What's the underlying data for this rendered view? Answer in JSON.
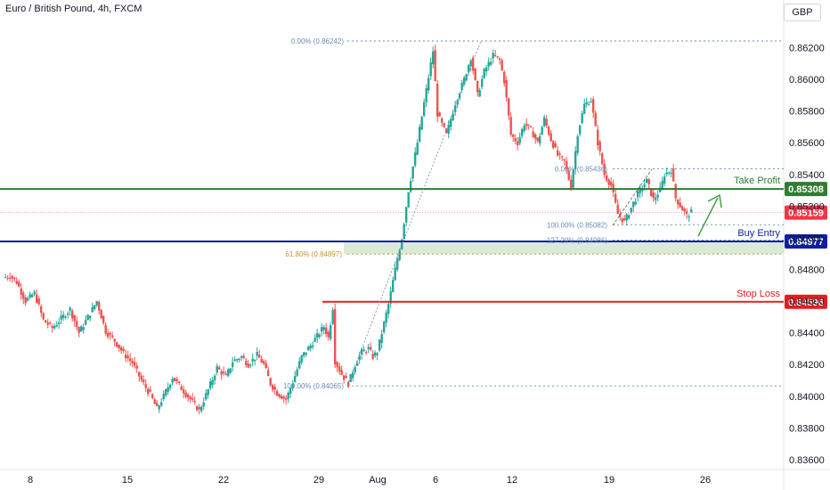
{
  "header": {
    "title": "Euro / British Pound, 4h, FXCM",
    "currency": "GBP"
  },
  "colors": {
    "up": "#26a69a",
    "down": "#ef5350",
    "take_profit": "#2e7d32",
    "buy_entry": "#0d1fa3",
    "stop_loss": "#e02020",
    "fib": "#6b8bb5",
    "fib_618": "#c8912e",
    "zone": "#cfe3c8",
    "arrow": "#43a047",
    "current": "#f23645"
  },
  "chart_data": {
    "type": "candlestick",
    "title": "",
    "xlabel": "",
    "ylabel": "",
    "ylim": [
      0.8355,
      0.8627
    ],
    "y_ticks": [
      "0.86200",
      "0.86000",
      "0.85800",
      "0.85600",
      "0.85400",
      "0.85200",
      "0.85000",
      "0.84800",
      "0.84600",
      "0.84400",
      "0.84200",
      "0.84000",
      "0.83800",
      "0.83600"
    ],
    "x_ticks": [
      "8",
      "15",
      "22",
      "29",
      "Aug",
      "6",
      "12",
      "19",
      "26"
    ],
    "levels": [
      {
        "id": "take-profit",
        "label": "Take Profit",
        "value": 0.85308,
        "price_label": "0.85308"
      },
      {
        "id": "buy-entry",
        "label": "Buy Entry",
        "value": 0.84977,
        "price_label": "0.84977"
      },
      {
        "id": "stop-loss",
        "label": "Stop Loss",
        "value": 0.84596,
        "price_label": "0.84596"
      }
    ],
    "current_price": {
      "value": 0.85159,
      "label": "0.85159"
    },
    "fib_labels": [
      {
        "text": "0.00% (0.86242)",
        "value": 0.86242
      },
      {
        "text": "100.00% (0.84065)",
        "value": 0.84065
      },
      {
        "text": "61.80% (0.84897)",
        "value": 0.84897
      },
      {
        "text": "0.00% (0.85436)",
        "value": 0.85436
      },
      {
        "text": "100.00% (0.85082)",
        "value": 0.85082
      },
      {
        "text": "127.20% (0.84986)",
        "value": 0.84986
      }
    ],
    "price_path": [
      [
        0,
        0.8475
      ],
      [
        3,
        0.8476
      ],
      [
        6,
        0.8472
      ],
      [
        10,
        0.846
      ],
      [
        14,
        0.8465
      ],
      [
        18,
        0.8448
      ],
      [
        22,
        0.8443
      ],
      [
        26,
        0.8449
      ],
      [
        30,
        0.8455
      ],
      [
        34,
        0.844
      ],
      [
        38,
        0.845
      ],
      [
        42,
        0.846
      ],
      [
        46,
        0.8441
      ],
      [
        50,
        0.8435
      ],
      [
        54,
        0.8427
      ],
      [
        58,
        0.8421
      ],
      [
        62,
        0.841
      ],
      [
        66,
        0.8401
      ],
      [
        69,
        0.8392
      ],
      [
        72,
        0.84
      ],
      [
        76,
        0.8412
      ],
      [
        80,
        0.8405
      ],
      [
        84,
        0.8398
      ],
      [
        88,
        0.8391
      ],
      [
        92,
        0.8404
      ],
      [
        96,
        0.8418
      ],
      [
        100,
        0.8412
      ],
      [
        103,
        0.8422
      ],
      [
        107,
        0.8425
      ],
      [
        110,
        0.842
      ],
      [
        114,
        0.8426
      ],
      [
        117,
        0.842
      ],
      [
        120,
        0.8408
      ],
      [
        123,
        0.8402
      ],
      [
        127,
        0.8398
      ],
      [
        130,
        0.8409
      ],
      [
        134,
        0.8425
      ],
      [
        138,
        0.8432
      ],
      [
        141,
        0.8438
      ],
      [
        144,
        0.8444
      ],
      [
        146,
        0.8437
      ],
      [
        148,
        0.8456
      ],
      [
        149,
        0.8422
      ],
      [
        152,
        0.8414
      ],
      [
        155,
        0.8408
      ],
      [
        158,
        0.842
      ],
      [
        161,
        0.8428
      ],
      [
        164,
        0.843
      ],
      [
        166,
        0.8425
      ],
      [
        168,
        0.8428
      ],
      [
        170,
        0.844
      ],
      [
        173,
        0.8458
      ],
      [
        176,
        0.848
      ],
      [
        179,
        0.85
      ],
      [
        182,
        0.853
      ],
      [
        186,
        0.856
      ],
      [
        189,
        0.8585
      ],
      [
        193,
        0.8618
      ],
      [
        195,
        0.8578
      ],
      [
        199,
        0.8565
      ],
      [
        203,
        0.8585
      ],
      [
        207,
        0.86
      ],
      [
        210,
        0.8614
      ],
      [
        213,
        0.859
      ],
      [
        216,
        0.8605
      ],
      [
        220,
        0.8615
      ],
      [
        223,
        0.8612
      ],
      [
        225,
        0.8599
      ],
      [
        228,
        0.8565
      ],
      [
        231,
        0.856
      ],
      [
        234,
        0.8572
      ],
      [
        237,
        0.8568
      ],
      [
        240,
        0.856
      ],
      [
        243,
        0.8575
      ],
      [
        246,
        0.8562
      ],
      [
        249,
        0.8552
      ],
      [
        252,
        0.8548
      ],
      [
        255,
        0.8532
      ],
      [
        258,
        0.8566
      ],
      [
        261,
        0.8584
      ],
      [
        264,
        0.8587
      ],
      [
        267,
        0.856
      ],
      [
        270,
        0.854
      ],
      [
        273,
        0.8533
      ],
      [
        276,
        0.8515
      ],
      [
        279,
        0.851
      ],
      [
        283,
        0.8522
      ],
      [
        286,
        0.853
      ],
      [
        289,
        0.8536
      ],
      [
        292,
        0.8524
      ],
      [
        295,
        0.853
      ],
      [
        297,
        0.854
      ],
      [
        300,
        0.8543
      ],
      [
        302,
        0.8525
      ],
      [
        305,
        0.8518
      ],
      [
        307,
        0.8514
      ],
      [
        309,
        0.8516
      ]
    ]
  }
}
